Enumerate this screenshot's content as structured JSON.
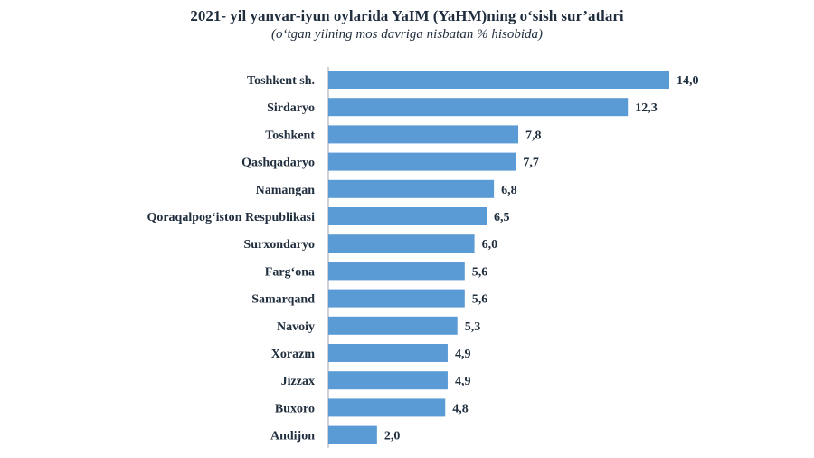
{
  "chart_data": {
    "type": "bar",
    "orientation": "horizontal",
    "title": "2021- yil yanvar-iyun oylarida YaIM (YaHM)ning o‘sish sur’atlari",
    "subtitle": "(o‘tgan yilning mos davriga nisbatan % hisobida)",
    "categories": [
      "Toshkent sh.",
      "Sirdaryo",
      "Toshkent",
      "Qashqadaryo",
      "Namangan",
      "Qoraqalpog‘iston Respublikasi",
      "Surxondaryo",
      "Farg‘ona",
      "Samarqand",
      "Navoiy",
      "Xorazm",
      "Jizzax",
      "Buxoro",
      "Andijon"
    ],
    "values": [
      14.0,
      12.3,
      7.8,
      7.7,
      6.8,
      6.5,
      6.0,
      5.6,
      5.6,
      5.3,
      4.9,
      4.9,
      4.8,
      2.0
    ],
    "value_labels": [
      "14,0",
      "12,3",
      "7,8",
      "7,7",
      "6,8",
      "6,5",
      "6,0",
      "5,6",
      "5,6",
      "5,3",
      "4,9",
      "4,9",
      "4,8",
      "2,0"
    ],
    "xlim": [
      0,
      14
    ],
    "grid": false,
    "bar_color": "#5b9bd5"
  }
}
